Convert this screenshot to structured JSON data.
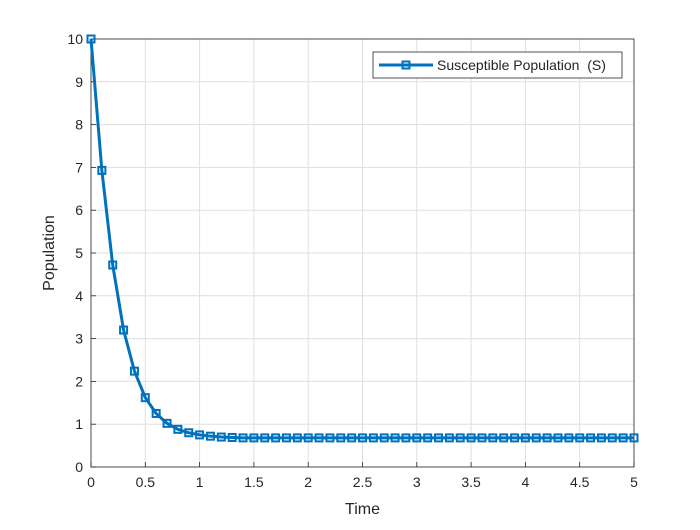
{
  "chart_data": {
    "type": "line",
    "title": "",
    "xlabel": "Time",
    "ylabel": "Population",
    "xlim": [
      0,
      5
    ],
    "ylim": [
      0,
      10
    ],
    "xticks": [
      0,
      0.5,
      1,
      1.5,
      2,
      2.5,
      3,
      3.5,
      4,
      4.5,
      5
    ],
    "xtick_labels": [
      "0",
      "0.5",
      "1",
      "1.5",
      "2",
      "2.5",
      "3",
      "3.5",
      "4",
      "4.5",
      "5"
    ],
    "yticks": [
      0,
      1,
      2,
      3,
      4,
      5,
      6,
      7,
      8,
      9,
      10
    ],
    "ytick_labels": [
      "0",
      "1",
      "2",
      "3",
      "4",
      "5",
      "6",
      "7",
      "8",
      "9",
      "10"
    ],
    "grid": true,
    "legend": {
      "placement": "top-right",
      "entries": [
        "Susceptible Population  (S)"
      ]
    },
    "series": [
      {
        "name": "Susceptible Population  (S)",
        "color": "#0072BD",
        "marker": "square",
        "x": [
          0,
          0.1,
          0.2,
          0.3,
          0.4,
          0.5,
          0.6,
          0.7,
          0.8,
          0.9,
          1.0,
          1.1,
          1.2,
          1.3,
          1.4,
          1.5,
          1.6,
          1.7,
          1.8,
          1.9,
          2.0,
          2.1,
          2.2,
          2.3,
          2.4,
          2.5,
          2.6,
          2.7,
          2.8,
          2.9,
          3.0,
          3.1,
          3.2,
          3.3,
          3.4,
          3.5,
          3.6,
          3.7,
          3.8,
          3.9,
          4.0,
          4.1,
          4.2,
          4.3,
          4.4,
          4.5,
          4.6,
          4.7,
          4.8,
          4.9,
          5.0
        ],
        "y": [
          10,
          6.93,
          4.72,
          3.2,
          2.24,
          1.62,
          1.25,
          1.02,
          0.88,
          0.8,
          0.75,
          0.72,
          0.7,
          0.69,
          0.68,
          0.68,
          0.68,
          0.68,
          0.68,
          0.68,
          0.68,
          0.68,
          0.68,
          0.68,
          0.68,
          0.68,
          0.68,
          0.68,
          0.68,
          0.68,
          0.68,
          0.68,
          0.68,
          0.68,
          0.68,
          0.68,
          0.68,
          0.68,
          0.68,
          0.68,
          0.68,
          0.68,
          0.68,
          0.68,
          0.68,
          0.68,
          0.68,
          0.68,
          0.68,
          0.68,
          0.68
        ]
      }
    ]
  }
}
